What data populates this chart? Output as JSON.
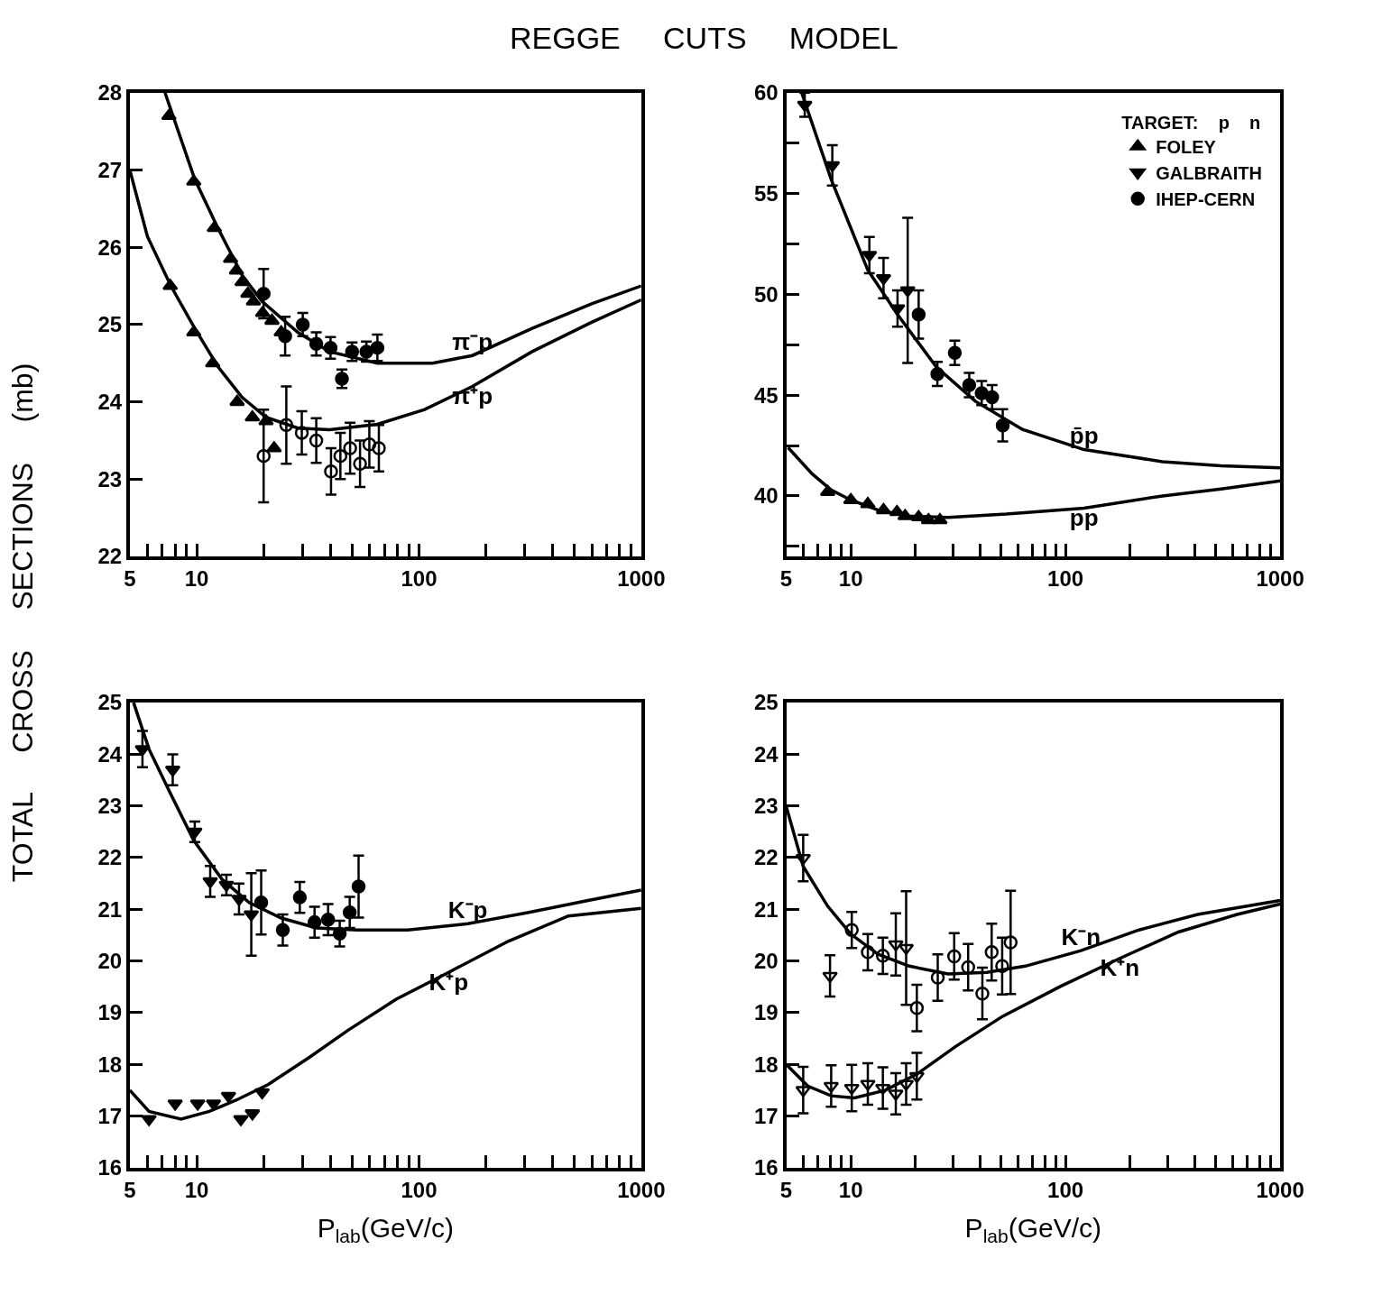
{
  "chart_data": [
    {
      "type": "line",
      "title": "REGGE     CUTS     MODEL",
      "ylabel": "TOTAL     CROSS     SECTIONS     (mb)",
      "log": "x",
      "xlim": [
        5,
        1000
      ],
      "xticks": [
        5,
        {
          "value": 6,
          "label": null
        },
        {
          "value": 7,
          "label": null
        },
        {
          "value": 8,
          "label": null
        },
        {
          "value": 9,
          "label": null
        },
        10,
        {
          "value": 20,
          "label": null
        },
        {
          "value": 30,
          "label": null
        },
        {
          "value": 40,
          "label": null
        },
        {
          "value": 50,
          "label": null
        },
        {
          "value": 60,
          "label": null
        },
        {
          "value": 70,
          "label": null
        },
        {
          "value": 80,
          "label": null
        },
        {
          "value": 90,
          "label": null
        },
        100,
        {
          "value": 200,
          "label": null
        },
        {
          "value": 300,
          "label": null
        },
        {
          "value": 400,
          "label": null
        },
        {
          "value": 500,
          "label": null
        },
        {
          "value": 600,
          "label": null
        },
        {
          "value": 700,
          "label": null
        },
        {
          "value": 800,
          "label": null
        },
        {
          "value": 900,
          "label": null
        },
        1000
      ],
      "ylim": [
        22,
        28
      ],
      "yticks": [
        22,
        23,
        24,
        25,
        26,
        27,
        28
      ],
      "series": [
        {
          "name": "π⁻p",
          "color": "#000000",
          "x": [
            7.2,
            9.8,
            12.5,
            16,
            19.7,
            28.5,
            39.6,
            65,
            115,
            174,
            323,
            598,
            1000
          ],
          "values": [
            28.0,
            26.88,
            26.24,
            25.64,
            25.3,
            24.9,
            24.65,
            24.5,
            24.5,
            24.6,
            24.95,
            25.27,
            25.5
          ]
        },
        {
          "name": "π⁺p",
          "color": "#000000",
          "x": [
            5,
            6.0,
            7.65,
            9.8,
            12.5,
            16,
            20.5,
            28.5,
            39.6,
            65,
            106,
            174,
            323,
            598,
            1000
          ],
          "values": [
            27.0,
            26.14,
            25.5,
            24.95,
            24.45,
            24.06,
            23.8,
            23.66,
            23.64,
            23.71,
            23.9,
            24.2,
            24.65,
            25.03,
            25.32
          ]
        },
        {
          "type": "scatter",
          "marker": "triangle",
          "color": "#000000",
          "x": [
            7.5,
            9.7,
            12,
            14.2,
            15.1,
            16,
            17,
            18,
            19.8,
            21.8,
            24
          ],
          "values": [
            27.7,
            26.85,
            26.25,
            25.85,
            25.7,
            25.55,
            25.4,
            25.3,
            25.15,
            25.05,
            24.9
          ]
        },
        {
          "type": "scatter",
          "marker": "triangle",
          "color": "#000000",
          "x": [
            7.6,
            9.7,
            11.8,
            15.2,
            17.8,
            20.5,
            22.3
          ],
          "values": [
            25.5,
            24.9,
            24.5,
            24.0,
            23.8,
            23.75,
            23.4
          ]
        },
        {
          "type": "scatter",
          "marker": "circle",
          "color": "#000000",
          "x": [
            20,
            25,
            30,
            34.5,
            40,
            45,
            50,
            58,
            65
          ],
          "values": [
            25.4,
            24.85,
            25.0,
            24.75,
            24.7,
            24.3,
            24.65,
            24.65,
            24.7
          ],
          "errors": [
            0.32,
            0.25,
            0.15,
            0.15,
            0.14,
            0.12,
            0.12,
            0.13,
            0.17
          ]
        },
        {
          "type": "scatter",
          "marker": "circle-open",
          "color": "#000000",
          "x": [
            20,
            25.3,
            29.7,
            34.5,
            40.2,
            44.3,
            49,
            54.3,
            59.8,
            66
          ],
          "values": [
            23.3,
            23.7,
            23.6,
            23.5,
            23.1,
            23.3,
            23.4,
            23.2,
            23.45,
            23.4
          ],
          "errors": [
            0.6,
            0.5,
            0.28,
            0.29,
            0.3,
            0.3,
            0.33,
            0.3,
            0.3,
            0.3
          ]
        }
      ]
    },
    {
      "type": "line",
      "log": "x",
      "xlim": [
        5,
        1000
      ],
      "legend": "top right",
      "legend_title": "TARGET:    p    n",
      "xticks": [
        5,
        {
          "value": 6,
          "label": null
        },
        {
          "value": 7,
          "label": null
        },
        {
          "value": 8,
          "label": null
        },
        {
          "value": 9,
          "label": null
        },
        10,
        {
          "value": 20,
          "label": null
        },
        {
          "value": 30,
          "label": null
        },
        {
          "value": 40,
          "label": null
        },
        {
          "value": 50,
          "label": null
        },
        {
          "value": 60,
          "label": null
        },
        {
          "value": 70,
          "label": null
        },
        {
          "value": 80,
          "label": null
        },
        {
          "value": 90,
          "label": null
        },
        100,
        {
          "value": 200,
          "label": null
        },
        {
          "value": 300,
          "label": null
        },
        {
          "value": 400,
          "label": null
        },
        {
          "value": 500,
          "label": null
        },
        {
          "value": 600,
          "label": null
        },
        {
          "value": 700,
          "label": null
        },
        {
          "value": 800,
          "label": null
        },
        {
          "value": 900,
          "label": null
        },
        1000
      ],
      "ylim": [
        37,
        60
      ],
      "yticks": [
        {
          "value": 37.5,
          "label": null
        },
        40,
        {
          "value": 42.5,
          "label": null
        },
        45,
        {
          "value": 47.5,
          "label": null
        },
        50,
        {
          "value": 52.5,
          "label": null
        },
        55,
        {
          "value": 57.5,
          "label": null
        },
        60
      ],
      "series": [
        {
          "name": "p̄p",
          "color": "#000000",
          "x": [
            5.9,
            8.1,
            12.0,
            16.5,
            25,
            38,
            63,
            122,
            283,
            530,
            1000
          ],
          "values": [
            60.0,
            55.7,
            51.2,
            49.0,
            46.4,
            44.7,
            43.3,
            42.3,
            41.7,
            41.5,
            41.4
          ]
        },
        {
          "name": "pp",
          "color": "#000000",
          "x": [
            5.1,
            6.6,
            8.1,
            10,
            13.4,
            18.7,
            28.4,
            53,
            122,
            283,
            530,
            1000
          ],
          "values": [
            42.4,
            41.1,
            40.3,
            39.8,
            39.3,
            39.0,
            38.94,
            39.1,
            39.4,
            40.0,
            40.35,
            40.75
          ]
        },
        {
          "name": "FOLEY",
          "type": "scatter",
          "marker": "triangle",
          "color": "#000000",
          "x": [
            7.8,
            10,
            12,
            14.2,
            16.4,
            17.9,
            20.7,
            23,
            26
          ],
          "values": [
            40.2,
            39.8,
            39.6,
            39.3,
            39.2,
            39.0,
            38.95,
            38.8,
            38.8
          ]
        },
        {
          "name": "GALBRAITH",
          "type": "scatter",
          "marker": "triangle-down",
          "color": "#000000",
          "x": [
            6.1,
            8.2,
            12.2,
            14.2,
            16.5,
            18.4
          ],
          "values": [
            59.4,
            56.4,
            51.95,
            50.8,
            49.3,
            50.2
          ],
          "errors": [
            0.6,
            1.0,
            0.9,
            1.0,
            0.9,
            3.6
          ]
        },
        {
          "name": "IHEP-CERN",
          "type": "scatter",
          "marker": "circle",
          "color": "#000000",
          "x": [
            20.7,
            25.3,
            30.5,
            35.6,
            40.7,
            45.5,
            51
          ],
          "values": [
            49.0,
            46.05,
            47.1,
            45.5,
            45.1,
            44.9,
            43.5
          ],
          "errors": [
            1.2,
            0.6,
            0.6,
            0.6,
            0.6,
            0.6,
            0.8
          ]
        }
      ]
    },
    {
      "type": "line",
      "xlabel": "P$_{lab}$(GeV/c)",
      "log": "x",
      "xlim": [
        5,
        1000
      ],
      "xticks": [
        5,
        {
          "value": 6,
          "label": null
        },
        {
          "value": 7,
          "label": null
        },
        {
          "value": 8,
          "label": null
        },
        {
          "value": 9,
          "label": null
        },
        10,
        {
          "value": 20,
          "label": null
        },
        {
          "value": 30,
          "label": null
        },
        {
          "value": 40,
          "label": null
        },
        {
          "value": 50,
          "label": null
        },
        {
          "value": 60,
          "label": null
        },
        {
          "value": 70,
          "label": null
        },
        {
          "value": 80,
          "label": null
        },
        {
          "value": 90,
          "label": null
        },
        100,
        {
          "value": 200,
          "label": null
        },
        {
          "value": 300,
          "label": null
        },
        {
          "value": 400,
          "label": null
        },
        {
          "value": 500,
          "label": null
        },
        {
          "value": 600,
          "label": null
        },
        {
          "value": 700,
          "label": null
        },
        {
          "value": 800,
          "label": null
        },
        {
          "value": 900,
          "label": null
        },
        1000
      ],
      "ylim": [
        16,
        25
      ],
      "yticks": [
        16,
        17,
        18,
        19,
        20,
        21,
        22,
        23,
        24,
        25
      ],
      "series": [
        {
          "name": "K⁻p",
          "color": "#000000",
          "x": [
            5.2,
            6.1,
            7.5,
            9.7,
            13,
            17.2,
            24,
            34.6,
            52.5,
            89,
            166,
            312,
            577,
            1000
          ],
          "values": [
            25.0,
            24.1,
            23.3,
            22.33,
            21.58,
            21.13,
            20.83,
            20.64,
            20.6,
            20.6,
            20.72,
            20.94,
            21.17,
            21.37
          ]
        },
        {
          "name": "K⁺p",
          "color": "#000000",
          "x": [
            5,
            6.1,
            8.5,
            11.4,
            15.1,
            21,
            32,
            48,
            79,
            136,
            252,
            470,
            1000
          ],
          "values": [
            17.5,
            17.09,
            16.94,
            17.09,
            17.31,
            17.61,
            18.13,
            18.66,
            19.26,
            19.78,
            20.38,
            20.87,
            21.02
          ]
        },
        {
          "type": "scatter",
          "marker": "triangle-down",
          "color": "#000000",
          "x": [
            5.7,
            7.8,
            9.8,
            11.5,
            13.6,
            15.5,
            17.6
          ],
          "values": [
            24.1,
            23.7,
            22.5,
            21.54,
            21.47,
            21.2,
            20.9
          ],
          "errors": [
            0.35,
            0.3,
            0.2,
            0.3,
            0.2,
            0.3,
            0.8
          ]
        },
        {
          "type": "scatter",
          "marker": "circle",
          "color": "#000000",
          "x": [
            19.5,
            24.4,
            29.1,
            33.9,
            39,
            44,
            48.8,
            53.5
          ],
          "values": [
            21.13,
            20.6,
            21.23,
            20.75,
            20.8,
            20.53,
            20.94,
            21.44
          ],
          "errors": [
            0.62,
            0.3,
            0.3,
            0.3,
            0.3,
            0.25,
            0.3,
            0.6
          ]
        },
        {
          "type": "scatter",
          "marker": "triangle-down",
          "color": "#000000",
          "x": [
            6.1,
            8,
            10.1,
            11.9,
            13.9,
            15.8,
            17.8,
            19.7
          ],
          "values": [
            16.94,
            17.24,
            17.24,
            17.24,
            17.39,
            16.94,
            17.05,
            17.46
          ]
        }
      ]
    },
    {
      "type": "line",
      "xlabel": "P$_{lab}$(GeV/c)",
      "log": "x",
      "xlim": [
        5,
        1000
      ],
      "xticks": [
        5,
        {
          "value": 6,
          "label": null
        },
        {
          "value": 7,
          "label": null
        },
        {
          "value": 8,
          "label": null
        },
        {
          "value": 9,
          "label": null
        },
        10,
        {
          "value": 20,
          "label": null
        },
        {
          "value": 30,
          "label": null
        },
        {
          "value": 40,
          "label": null
        },
        {
          "value": 50,
          "label": null
        },
        {
          "value": 60,
          "label": null
        },
        {
          "value": 70,
          "label": null
        },
        {
          "value": 80,
          "label": null
        },
        {
          "value": 90,
          "label": null
        },
        100,
        {
          "value": 200,
          "label": null
        },
        {
          "value": 300,
          "label": null
        },
        {
          "value": 400,
          "label": null
        },
        {
          "value": 500,
          "label": null
        },
        {
          "value": 600,
          "label": null
        },
        {
          "value": 700,
          "label": null
        },
        {
          "value": 800,
          "label": null
        },
        {
          "value": 900,
          "label": null
        },
        1000
      ],
      "ylim": [
        16,
        25
      ],
      "yticks": [
        16,
        17,
        18,
        19,
        20,
        21,
        22,
        23,
        24,
        25
      ],
      "series": [
        {
          "name": "K⁻n",
          "color": "#000000",
          "x": [
            5,
            6.0,
            7.8,
            10,
            13.4,
            18.7,
            28.4,
            43,
            65,
            118,
            220,
            413,
            1000
          ],
          "values": [
            22.99,
            21.83,
            21.06,
            20.52,
            20.13,
            19.9,
            19.75,
            19.78,
            19.9,
            20.2,
            20.6,
            20.9,
            21.17
          ]
        },
        {
          "name": "K⁺n",
          "color": "#000000",
          "x": [
            5,
            6.3,
            8.1,
            10.4,
            14.5,
            20.3,
            30.9,
            51,
            95,
            179,
            336,
            630,
            1000
          ],
          "values": [
            18.0,
            17.58,
            17.39,
            17.35,
            17.5,
            17.81,
            18.35,
            18.93,
            19.51,
            20.05,
            20.56,
            20.9,
            21.1
          ]
        },
        {
          "type": "scatter",
          "marker": "triangle-down-open",
          "color": "#000000",
          "x": [
            6.0,
            8.0,
            16.2,
            18.1
          ],
          "values": [
            21.99,
            19.71,
            20.32,
            20.25
          ],
          "errors": [
            0.45,
            0.4,
            0.6,
            1.1
          ]
        },
        {
          "type": "scatter",
          "marker": "circle-open",
          "color": "#000000",
          "x": [
            10.1,
            12,
            14.1,
            20.3,
            25.4,
            30.3,
            35.2,
            41,
            45.3,
            50.7,
            55.5
          ],
          "values": [
            20.6,
            20.17,
            20.1,
            19.09,
            19.68,
            20.09,
            19.88,
            19.37,
            20.17,
            19.9,
            20.36
          ],
          "errors": [
            0.35,
            0.35,
            0.35,
            0.45,
            0.45,
            0.45,
            0.45,
            0.5,
            0.55,
            0.55,
            1.0
          ]
        },
        {
          "type": "scatter",
          "marker": "triangle-down-open",
          "color": "#000000",
          "x": [
            6.0,
            8.1,
            10.1,
            12,
            14.1,
            16.2,
            18.1,
            20.3
          ],
          "values": [
            17.5,
            17.58,
            17.54,
            17.62,
            17.54,
            17.43,
            17.62,
            17.77
          ],
          "errors": [
            0.45,
            0.4,
            0.45,
            0.4,
            0.4,
            0.4,
            0.4,
            0.45
          ]
        }
      ]
    }
  ]
}
